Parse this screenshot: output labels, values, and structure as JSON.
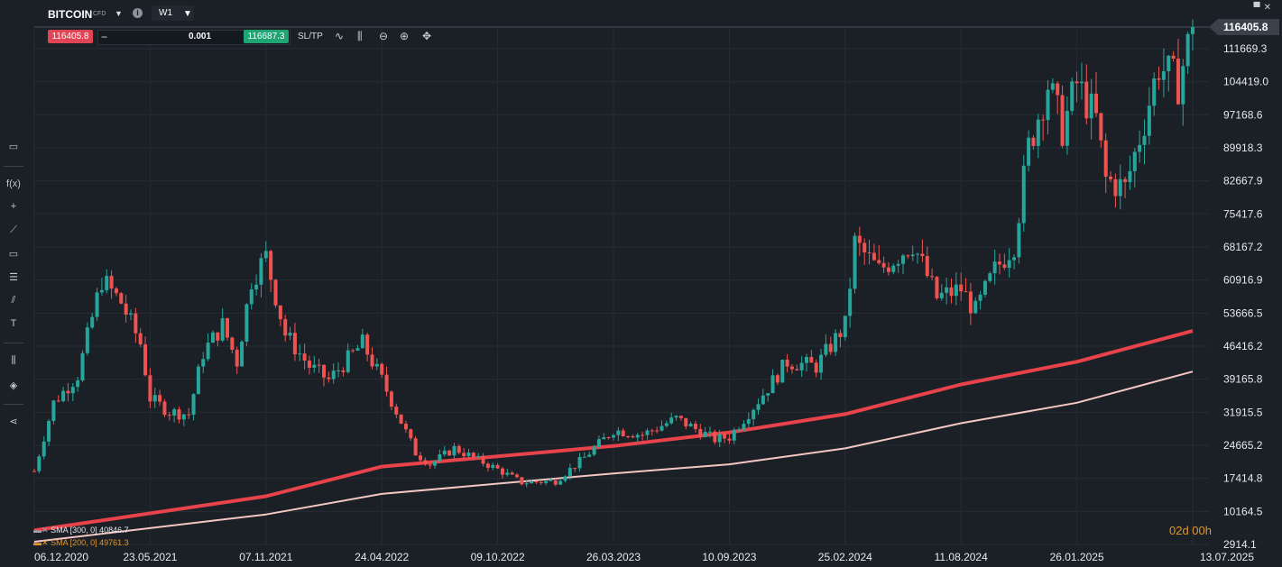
{
  "header": {
    "symbol": "BITCOIN",
    "symbol_tag": "CFD",
    "timeframe": "W1"
  },
  "trade_bar": {
    "sell_price": "116405.8",
    "quantity": "0.001",
    "buy_price": "116687.3",
    "sltp_label": "SL/TP"
  },
  "indicators": [
    {
      "label": "SMA [300, 0] 40846.7",
      "color": "#f4c7c3"
    },
    {
      "label": "SMA [200, 0] 49761.3",
      "color": "#e1962c"
    }
  ],
  "countdown": "02d 00h",
  "colors": {
    "up": "#26a69a",
    "down": "#ef5350",
    "sma200": "#e8424a",
    "sma300": "#f4c7c3",
    "background": "#1b2027"
  },
  "chart_data": {
    "type": "candlestick",
    "timeframe": "W1",
    "current_price": "116405.8",
    "y_ticks": [
      "116405.8",
      "111669.3",
      "104419.0",
      "97168.6",
      "89918.3",
      "82667.9",
      "75417.6",
      "68167.2",
      "60916.9",
      "53666.5",
      "46416.2",
      "39165.8",
      "31915.5",
      "24665.2",
      "17414.8",
      "10164.5",
      "2914.1"
    ],
    "x_ticks": [
      "06.12.2020",
      "23.05.2021",
      "07.11.2021",
      "24.04.2022",
      "09.10.2022",
      "26.03.2023",
      "10.09.2023",
      "25.02.2024",
      "11.08.2024",
      "26.01.2025",
      "13.07.2025"
    ],
    "ylim": [
      2914.1,
      116405.8
    ],
    "close_path": [
      {
        "date": "06.12.2020",
        "close": 19000
      },
      {
        "date": "03.01.2021",
        "close": 34000
      },
      {
        "date": "07.02.2021",
        "close": 40000
      },
      {
        "date": "14.03.2021",
        "close": 61000
      },
      {
        "date": "11.04.2021",
        "close": 56000
      },
      {
        "date": "09.05.2021",
        "close": 47000
      },
      {
        "date": "23.05.2021",
        "close": 35000
      },
      {
        "date": "20.06.2021",
        "close": 32000
      },
      {
        "date": "18.07.2021",
        "close": 31500
      },
      {
        "date": "08.08.2021",
        "close": 45000
      },
      {
        "date": "05.09.2021",
        "close": 51000
      },
      {
        "date": "26.09.2021",
        "close": 43000
      },
      {
        "date": "17.10.2021",
        "close": 61000
      },
      {
        "date": "07.11.2021",
        "close": 66000
      },
      {
        "date": "05.12.2021",
        "close": 49000
      },
      {
        "date": "09.01.2022",
        "close": 42000
      },
      {
        "date": "06.02.2022",
        "close": 39000
      },
      {
        "date": "27.03.2022",
        "close": 47000
      },
      {
        "date": "24.04.2022",
        "close": 39000
      },
      {
        "date": "12.06.2022",
        "close": 23000
      },
      {
        "date": "03.07.2022",
        "close": 20500
      },
      {
        "date": "07.08.2022",
        "close": 24000
      },
      {
        "date": "09.10.2022",
        "close": 19400
      },
      {
        "date": "13.11.2022",
        "close": 16500
      },
      {
        "date": "01.01.2023",
        "close": 16800
      },
      {
        "date": "12.02.2023",
        "close": 22000
      },
      {
        "date": "26.03.2023",
        "close": 28000
      },
      {
        "date": "07.05.2023",
        "close": 27000
      },
      {
        "date": "25.06.2023",
        "close": 30500
      },
      {
        "date": "20.08.2023",
        "close": 26000
      },
      {
        "date": "10.09.2023",
        "close": 26500
      },
      {
        "date": "22.10.2023",
        "close": 34500
      },
      {
        "date": "03.12.2023",
        "close": 43000
      },
      {
        "date": "14.01.2024",
        "close": 42000
      },
      {
        "date": "25.02.2024",
        "close": 51000
      },
      {
        "date": "10.03.2024",
        "close": 69000
      },
      {
        "date": "14.04.2024",
        "close": 63000
      },
      {
        "date": "02.06.2024",
        "close": 69000
      },
      {
        "date": "07.07.2024",
        "close": 57000
      },
      {
        "date": "11.08.2024",
        "close": 59000
      },
      {
        "date": "01.09.2024",
        "close": 54000
      },
      {
        "date": "29.09.2024",
        "close": 63000
      },
      {
        "date": "27.10.2024",
        "close": 69000
      },
      {
        "date": "17.11.2024",
        "close": 90000
      },
      {
        "date": "15.12.2024",
        "close": 104000
      },
      {
        "date": "05.01.2025",
        "close": 94000
      },
      {
        "date": "26.01.2025",
        "close": 104000
      },
      {
        "date": "23.02.2025",
        "close": 96000
      },
      {
        "date": "09.03.2025",
        "close": 83000
      },
      {
        "date": "06.04.2025",
        "close": 81000
      },
      {
        "date": "04.05.2025",
        "close": 96000
      },
      {
        "date": "25.05.2025",
        "close": 108000
      },
      {
        "date": "22.06.2025",
        "close": 104000
      },
      {
        "date": "13.07.2025",
        "close": 116405.8
      }
    ],
    "sma200": [
      {
        "date": "06.12.2020",
        "value": 6000
      },
      {
        "date": "07.11.2021",
        "value": 13500
      },
      {
        "date": "24.04.2022",
        "value": 20000
      },
      {
        "date": "26.03.2023",
        "value": 24500
      },
      {
        "date": "10.09.2023",
        "value": 27500
      },
      {
        "date": "25.02.2024",
        "value": 31500
      },
      {
        "date": "11.08.2024",
        "value": 38000
      },
      {
        "date": "26.01.2025",
        "value": 43000
      },
      {
        "date": "13.07.2025",
        "value": 49761.3
      }
    ],
    "sma300": [
      {
        "date": "06.12.2020",
        "value": 3500
      },
      {
        "date": "07.11.2021",
        "value": 9500
      },
      {
        "date": "24.04.2022",
        "value": 14000
      },
      {
        "date": "26.03.2023",
        "value": 18500
      },
      {
        "date": "10.09.2023",
        "value": 20500
      },
      {
        "date": "25.02.2024",
        "value": 24000
      },
      {
        "date": "11.08.2024",
        "value": 29500
      },
      {
        "date": "26.01.2025",
        "value": 34000
      },
      {
        "date": "13.07.2025",
        "value": 40846.7
      }
    ]
  }
}
